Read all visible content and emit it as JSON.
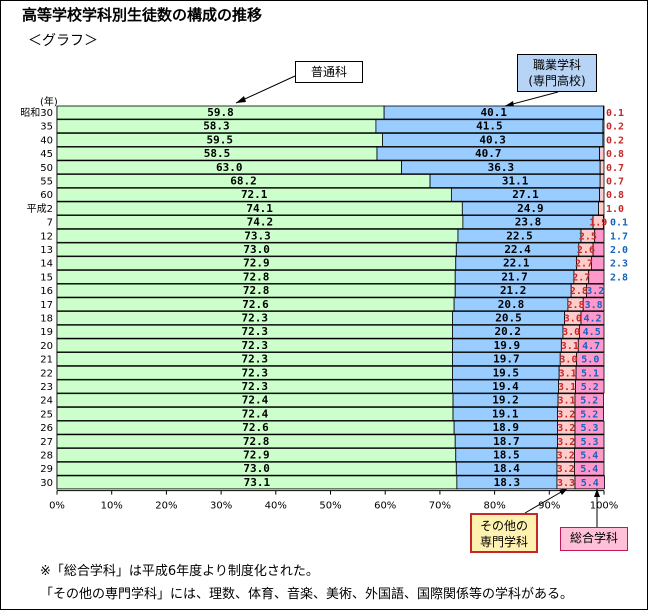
{
  "title": "高等学校学科別生徒数の構成の推移",
  "subtitle": "＜グラフ＞",
  "labels": {
    "general": "普通科",
    "vocational_line1": "職業学科",
    "vocational_line2": "(専門高校)",
    "other_line1": "その他の",
    "other_line2": "専門学科",
    "integrated": "総合学科",
    "year_unit": "(年)"
  },
  "footnotes": {
    "note1": "※「総合学科」は平成6年度より制度化された。",
    "note2": "「その他の専門学科」には、理数、体育、音楽、美術、外国語、国際関係等の学科がある。"
  },
  "colors": {
    "general": "#ccffcc",
    "vocational": "#99ccff",
    "other": "#ffcccc",
    "integrated": "#ff99cc",
    "other_text": "#c62828",
    "integrated_text": "#1565c0"
  },
  "chart_data": {
    "type": "bar",
    "orientation": "horizontal",
    "stacked": true,
    "title": "高等学校学科別生徒数の構成の推移",
    "xlim": [
      0,
      100
    ],
    "x_ticks": [
      "0%",
      "10%",
      "20%",
      "30%",
      "40%",
      "50%",
      "60%",
      "70%",
      "80%",
      "90%",
      "100%"
    ],
    "categories": [
      "昭和30",
      "35",
      "40",
      "45",
      "50",
      "55",
      "60",
      "平成2",
      "7",
      "12",
      "13",
      "14",
      "15",
      "16",
      "17",
      "18",
      "19",
      "20",
      "21",
      "22",
      "23",
      "24",
      "25",
      "26",
      "27",
      "28",
      "29",
      "30"
    ],
    "series": [
      {
        "name": "普通科",
        "values": [
          59.8,
          58.3,
          59.5,
          58.5,
          63.0,
          68.2,
          72.1,
          74.1,
          74.2,
          73.3,
          73.0,
          72.9,
          72.8,
          72.8,
          72.6,
          72.3,
          72.3,
          72.3,
          72.3,
          72.3,
          72.3,
          72.4,
          72.4,
          72.6,
          72.8,
          72.9,
          73.0,
          73.1
        ]
      },
      {
        "name": "職業学科(専門高校)",
        "values": [
          40.1,
          41.5,
          40.3,
          40.7,
          36.3,
          31.1,
          27.1,
          24.9,
          23.8,
          22.5,
          22.4,
          22.1,
          21.7,
          21.2,
          20.8,
          20.5,
          20.2,
          19.9,
          19.7,
          19.5,
          19.4,
          19.2,
          19.1,
          18.9,
          18.7,
          18.5,
          18.4,
          18.3
        ]
      },
      {
        "name": "その他の専門学科",
        "values": [
          0.1,
          0.2,
          0.2,
          0.8,
          0.7,
          0.7,
          0.8,
          1.0,
          1.9,
          2.5,
          2.6,
          2.7,
          2.7,
          2.8,
          2.8,
          3.0,
          3.0,
          3.1,
          3.0,
          3.1,
          3.1,
          3.1,
          3.2,
          3.2,
          3.2,
          3.2,
          3.2,
          3.3
        ]
      },
      {
        "name": "総合学科",
        "values": [
          0,
          0,
          0,
          0,
          0,
          0,
          0,
          0,
          0.1,
          1.7,
          2.0,
          2.3,
          2.8,
          3.2,
          3.8,
          4.2,
          4.5,
          4.7,
          5.0,
          5.1,
          5.2,
          5.2,
          5.2,
          5.3,
          5.3,
          5.4,
          5.4,
          5.4
        ]
      }
    ],
    "value_labels": {
      "general": [
        "59.8",
        "58.3",
        "59.5",
        "58.5",
        "63.0",
        "68.2",
        "72.1",
        "74.1",
        "74.2",
        "73.3",
        "73.0",
        "72.9",
        "72.8",
        "72.8",
        "72.6",
        "72.3",
        "72.3",
        "72.3",
        "72.3",
        "72.3",
        "72.3",
        "72.4",
        "72.4",
        "72.6",
        "72.8",
        "72.9",
        "73.0",
        "73.1"
      ],
      "vocational": [
        "40.1",
        "41.5",
        "40.3",
        "40.7",
        "36.3",
        "31.1",
        "27.1",
        "24.9",
        "23.8",
        "22.5",
        "22.4",
        "22.1",
        "21.7",
        "21.2",
        "20.8",
        "20.5",
        "20.2",
        "19.9",
        "19.7",
        "19.5",
        "19.4",
        "19.2",
        "19.1",
        "18.9",
        "18.7",
        "18.5",
        "18.4",
        "18.3"
      ],
      "other": [
        "0.1",
        "0.2",
        "0.2",
        "0.8",
        "0.7",
        "0.7",
        "0.8",
        "1.0",
        "1.9",
        "2.5",
        "2.6",
        "2.7",
        "2.7",
        "2.8",
        "2.8",
        "3.0",
        "3.0",
        "3.1",
        "3.0",
        "3.1",
        "3.1",
        "3.1",
        "3.2",
        "3.2",
        "3.2",
        "3.2",
        "3.2",
        "3.3"
      ],
      "integrated": [
        "",
        "",
        "",
        "",
        "",
        "",
        "",
        "",
        "0.1",
        "1.7",
        "2.0",
        "2.3",
        "2.8",
        "3.2",
        "3.8",
        "4.2",
        "4.5",
        "4.7",
        "5.0",
        "5.1",
        "5.2",
        "5.2",
        "5.2",
        "5.3",
        "5.3",
        "5.4",
        "5.4",
        "5.4"
      ]
    }
  }
}
